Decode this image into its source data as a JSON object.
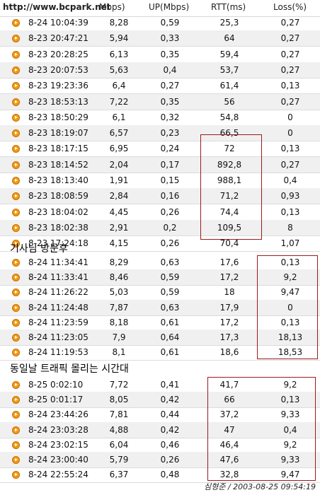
{
  "header": {
    "watermark": "http://www.bcpark.net",
    "down_col": "Mbps)",
    "up_col": "UP(Mbps)",
    "rtt_col": "RTT(ms)",
    "loss_col": "Loss(%)"
  },
  "group1": [
    {
      "ts": "8-24 10:04:39",
      "down": "8,28",
      "up": "0,59",
      "rtt": "25,3",
      "loss": "0,27"
    },
    {
      "ts": "8-23 20:47:21",
      "down": "5,94",
      "up": "0,33",
      "rtt": "64",
      "loss": "0,27"
    },
    {
      "ts": "8-23 20:28:25",
      "down": "6,13",
      "up": "0,35",
      "rtt": "59,4",
      "loss": "0,27"
    },
    {
      "ts": "8-23 20:07:53",
      "down": "5,63",
      "up": "0,4",
      "rtt": "53,7",
      "loss": "0,27"
    },
    {
      "ts": "8-23 19:23:36",
      "down": "6,4",
      "up": "0,27",
      "rtt": "61,4",
      "loss": "0,13"
    },
    {
      "ts": "8-23 18:53:13",
      "down": "7,22",
      "up": "0,35",
      "rtt": "56",
      "loss": "0,27"
    },
    {
      "ts": "8-23 18:50:29",
      "down": "6,1",
      "up": "0,32",
      "rtt": "54,8",
      "loss": "0"
    },
    {
      "ts": "8-23 18:19:07",
      "down": "6,57",
      "up": "0,23",
      "rtt": "66,5",
      "loss": "0"
    },
    {
      "ts": "8-23 18:17:15",
      "down": "6,95",
      "up": "0,24",
      "rtt": "72",
      "loss": "0,13"
    },
    {
      "ts": "8-23 18:14:52",
      "down": "2,04",
      "up": "0,17",
      "rtt": "892,8",
      "loss": "0,27"
    },
    {
      "ts": "8-23 18:13:40",
      "down": "1,91",
      "up": "0,15",
      "rtt": "988,1",
      "loss": "0,4"
    },
    {
      "ts": "8-23 18:08:59",
      "down": "2,84",
      "up": "0,16",
      "rtt": "71,2",
      "loss": "0,93"
    },
    {
      "ts": "8-23 18:04:02",
      "down": "4,45",
      "up": "0,26",
      "rtt": "74,4",
      "loss": "0,13"
    },
    {
      "ts": "8-23 18:02:38",
      "down": "2,91",
      "up": "0,2",
      "rtt": "109,5",
      "loss": "8"
    },
    {
      "ts": "8-23 17:24:18",
      "down": "4,15",
      "up": "0,26",
      "rtt": "70,4",
      "loss": "1,07"
    }
  ],
  "section2_title": "기사님 방문후",
  "group2": [
    {
      "ts": "8-24 11:34:41",
      "down": "8,29",
      "up": "0,63",
      "rtt": "17,6",
      "loss": "0,13"
    },
    {
      "ts": "8-24 11:33:41",
      "down": "8,46",
      "up": "0,59",
      "rtt": "17,2",
      "loss": "9,2"
    },
    {
      "ts": "8-24 11:26:22",
      "down": "5,03",
      "up": "0,59",
      "rtt": "18",
      "loss": "9,47"
    },
    {
      "ts": "8-24 11:24:48",
      "down": "7,87",
      "up": "0,63",
      "rtt": "17,9",
      "loss": "0"
    },
    {
      "ts": "8-24 11:23:59",
      "down": "8,18",
      "up": "0,61",
      "rtt": "17,2",
      "loss": "0,13"
    },
    {
      "ts": "8-24 11:23:05",
      "down": "7,9",
      "up": "0,64",
      "rtt": "17,3",
      "loss": "18,13"
    },
    {
      "ts": "8-24 11:19:53",
      "down": "8,1",
      "up": "0,61",
      "rtt": "18,6",
      "loss": "18,53"
    }
  ],
  "section3_title": "동일날 트래픽 몰리는 시간대",
  "group3": [
    {
      "ts": "8-25  0:02:10",
      "down": "7,72",
      "up": "0,41",
      "rtt": "41,7",
      "loss": "9,2"
    },
    {
      "ts": "8-25  0:01:17",
      "down": "8,05",
      "up": "0,42",
      "rtt": "66",
      "loss": "0,13"
    },
    {
      "ts": "8-24 23:44:26",
      "down": "7,81",
      "up": "0,44",
      "rtt": "37,2",
      "loss": "9,33"
    },
    {
      "ts": "8-24 23:03:28",
      "down": "4,88",
      "up": "0,42",
      "rtt": "47",
      "loss": "0,4"
    },
    {
      "ts": "8-24 23:02:15",
      "down": "6,04",
      "up": "0,46",
      "rtt": "46,4",
      "loss": "9,2"
    },
    {
      "ts": "8-24 23:00:40",
      "down": "5,79",
      "up": "0,26",
      "rtt": "47,6",
      "loss": "9,33"
    },
    {
      "ts": "8-24 22:55:24",
      "down": "6,37",
      "up": "0,48",
      "rtt": "32,8",
      "loss": "9,47"
    }
  ],
  "footer": "심형준 / 2003-08-25 09:54:19"
}
